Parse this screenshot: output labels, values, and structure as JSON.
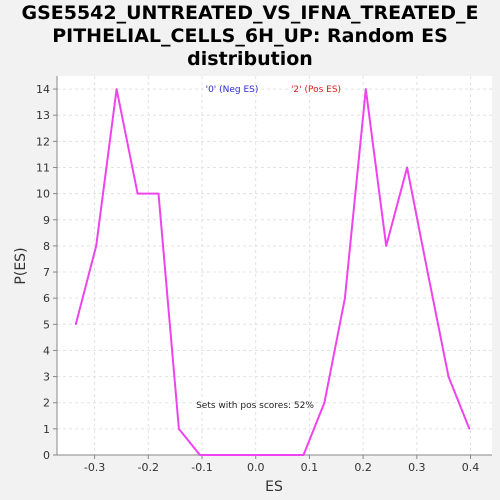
{
  "chart_data": {
    "type": "line",
    "title_lines": [
      "GSE5542_UNTREATED_VS_IFNA_TREATED_E",
      "PITHELIAL_CELLS_6H_UP: Random ES",
      "distribution"
    ],
    "xlabel": "ES",
    "ylabel": "P(ES)",
    "xlim": [
      -0.37,
      0.44
    ],
    "ylim": [
      0,
      14.5
    ],
    "x_ticks": [
      -0.3,
      -0.2,
      -0.1,
      0.0,
      0.1,
      0.2,
      0.3,
      0.4
    ],
    "x_tick_labels": [
      "-0.3",
      "-0.2",
      "-0.1",
      "0.0",
      "0.1",
      "0.2",
      "0.3",
      "0.4"
    ],
    "y_ticks": [
      0,
      1,
      2,
      3,
      4,
      5,
      6,
      7,
      8,
      9,
      10,
      11,
      12,
      13,
      14
    ],
    "y_tick_labels": [
      "0",
      "1",
      "2",
      "3",
      "4",
      "5",
      "6",
      "7",
      "8",
      "9",
      "10",
      "11",
      "12",
      "13",
      "14"
    ],
    "grid": true,
    "legend": [
      {
        "label": "'0' (Neg ES)",
        "color": "#2b2bd6"
      },
      {
        "label": "'2' (Pos ES)",
        "color": "#e02020"
      }
    ],
    "annotation": "Sets with pos scores: 52%",
    "series": [
      {
        "color": "#ee44ee",
        "x": [
          -0.335,
          -0.297,
          -0.259,
          -0.22,
          -0.181,
          -0.143,
          -0.104,
          -0.066,
          -0.027,
          0.012,
          0.05,
          0.089,
          0.128,
          0.166,
          0.205,
          0.243,
          0.282,
          0.32,
          0.359,
          0.398
        ],
        "y": [
          5,
          8,
          14,
          10,
          10,
          1,
          0,
          0,
          0,
          0,
          0,
          0,
          2,
          6,
          14,
          8,
          11,
          7,
          3,
          1
        ]
      }
    ]
  }
}
